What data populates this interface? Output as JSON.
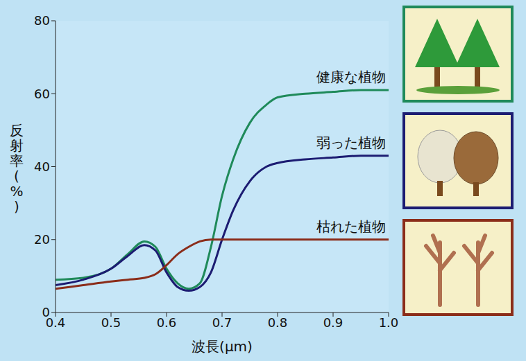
{
  "chart_data": {
    "type": "line",
    "x_label": "波長(μm)",
    "y_label": "反射率(%)",
    "x": [
      0.4,
      0.45,
      0.5,
      0.53,
      0.56,
      0.58,
      0.6,
      0.62,
      0.64,
      0.66,
      0.68,
      0.7,
      0.72,
      0.75,
      0.78,
      0.8,
      0.85,
      0.9,
      0.95,
      1.0
    ],
    "series": [
      {
        "name": "健康な植物",
        "color": "#1f8a5a",
        "values": [
          9,
          9.5,
          12,
          16,
          19.5,
          18,
          12,
          8,
          6.5,
          8,
          18,
          32,
          42,
          52,
          57,
          59,
          60,
          60.5,
          61,
          61
        ]
      },
      {
        "name": "弱った植物",
        "color": "#1c1c72",
        "values": [
          7.5,
          9,
          12,
          15.5,
          18.5,
          17,
          11,
          7,
          6,
          7,
          11,
          20,
          28,
          36,
          40,
          41,
          42,
          42.5,
          43,
          43
        ]
      },
      {
        "name": "枯れた植物",
        "color": "#8b2d1a",
        "values": [
          6.5,
          7.5,
          8.5,
          9,
          9.5,
          10.5,
          13,
          16,
          18,
          19.5,
          20,
          20,
          20,
          20,
          20,
          20,
          20,
          20,
          20,
          20
        ]
      }
    ],
    "xlim": [
      0.4,
      1.0
    ],
    "xticks": [
      0.4,
      0.5,
      0.6,
      0.7,
      0.8,
      0.9,
      {
        "value": 1.0,
        "label": "1.0"
      }
    ],
    "ylim": [
      0,
      80
    ],
    "yticks": [
      0,
      20,
      40,
      60,
      80
    ],
    "grid": false
  }
}
